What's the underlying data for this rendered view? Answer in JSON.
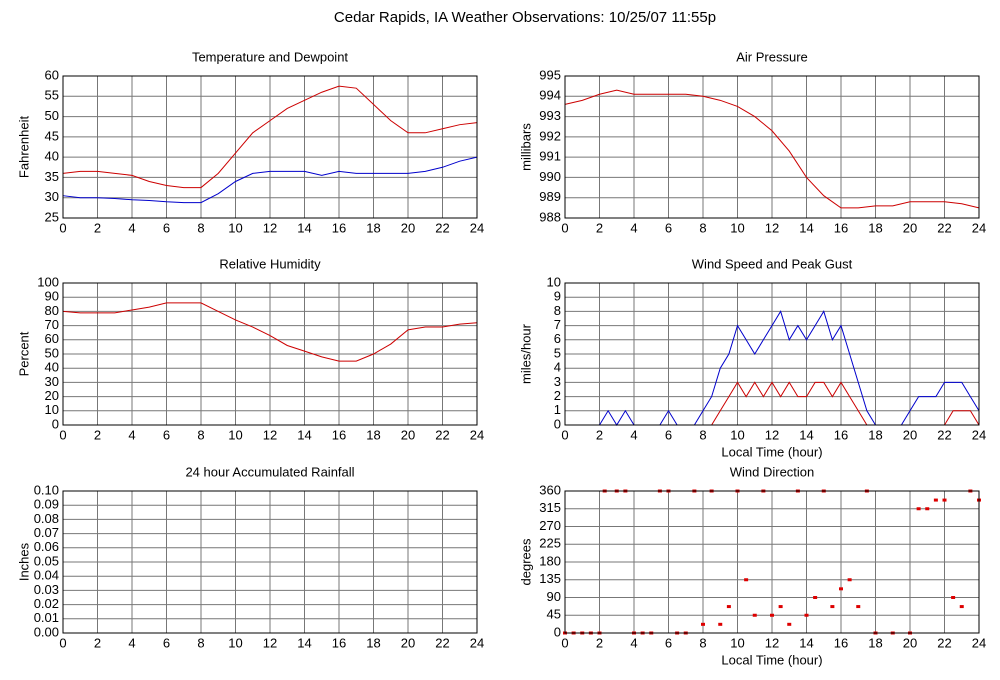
{
  "title": "Cedar Rapids, IA Weather Observations: 10/25/07 11:55p",
  "chart_data": [
    {
      "type": "line",
      "title": "Temperature and Dewpoint",
      "ylabel": "Fahrenheit",
      "x": [
        0,
        1,
        2,
        3,
        4,
        5,
        6,
        7,
        8,
        9,
        10,
        11,
        12,
        13,
        14,
        15,
        16,
        17,
        18,
        19,
        20,
        21,
        22,
        23,
        24
      ],
      "series": [
        {
          "name": "Temperature",
          "color": "#cc0000",
          "values": [
            36,
            36.5,
            36.5,
            36,
            35.5,
            34,
            33,
            32.5,
            32.5,
            36,
            41,
            46,
            49,
            52,
            54,
            56,
            57.5,
            57,
            53,
            49,
            46,
            46,
            47,
            48,
            48.5
          ]
        },
        {
          "name": "Dewpoint",
          "color": "#0000cc",
          "values": [
            30.5,
            30,
            30,
            29.8,
            29.5,
            29.3,
            29,
            28.8,
            28.8,
            31,
            34,
            36,
            36.5,
            36.5,
            36.5,
            35.5,
            36.5,
            36,
            36,
            36,
            36,
            36.5,
            37.5,
            39,
            40
          ]
        }
      ],
      "xlim": [
        0,
        24
      ],
      "xticks": [
        0,
        2,
        4,
        6,
        8,
        10,
        12,
        14,
        16,
        18,
        20,
        22,
        24
      ],
      "ylim": [
        25,
        60
      ],
      "yticks": [
        25,
        30,
        35,
        40,
        45,
        50,
        55,
        60
      ],
      "grid": true
    },
    {
      "type": "line",
      "title": "Air Pressure",
      "ylabel": "millibars",
      "x": [
        0,
        1,
        2,
        3,
        4,
        5,
        6,
        7,
        8,
        9,
        10,
        11,
        12,
        13,
        14,
        15,
        16,
        17,
        18,
        19,
        20,
        21,
        22,
        23,
        24
      ],
      "series": [
        {
          "name": "Pressure",
          "color": "#cc0000",
          "values": [
            993.6,
            993.8,
            994.1,
            994.3,
            994.1,
            994.1,
            994.1,
            994.1,
            994.0,
            993.8,
            993.5,
            993.0,
            992.3,
            991.3,
            990.0,
            989.1,
            988.5,
            988.5,
            988.6,
            988.6,
            988.8,
            988.8,
            988.8,
            988.7,
            988.5
          ]
        }
      ],
      "xlim": [
        0,
        24
      ],
      "xticks": [
        0,
        2,
        4,
        6,
        8,
        10,
        12,
        14,
        16,
        18,
        20,
        22,
        24
      ],
      "ylim": [
        988,
        995
      ],
      "yticks": [
        988,
        989,
        990,
        991,
        992,
        993,
        994,
        995
      ],
      "grid": true
    },
    {
      "type": "line",
      "title": "Relative Humidity",
      "ylabel": "Percent",
      "x": [
        0,
        1,
        2,
        3,
        4,
        5,
        6,
        7,
        8,
        9,
        10,
        11,
        12,
        13,
        14,
        15,
        16,
        17,
        18,
        19,
        20,
        21,
        22,
        23,
        24
      ],
      "series": [
        {
          "name": "Humidity",
          "color": "#cc0000",
          "values": [
            80,
            79,
            79,
            79,
            81,
            83,
            86,
            86,
            86,
            80,
            74,
            69,
            63,
            56,
            52,
            48,
            45,
            45,
            50,
            57,
            67,
            69,
            69,
            71,
            72
          ]
        }
      ],
      "xlim": [
        0,
        24
      ],
      "xticks": [
        0,
        2,
        4,
        6,
        8,
        10,
        12,
        14,
        16,
        18,
        20,
        22,
        24
      ],
      "ylim": [
        0,
        100
      ],
      "yticks": [
        0,
        10,
        20,
        30,
        40,
        50,
        60,
        70,
        80,
        90,
        100
      ],
      "grid": true
    },
    {
      "type": "line",
      "title": "Wind Speed and Peak Gust",
      "ylabel": "miles/hour",
      "xlabel": "Local Time (hour)",
      "x": [
        0,
        0.5,
        1,
        1.5,
        2,
        2.5,
        3,
        3.5,
        4,
        4.5,
        5,
        5.5,
        6,
        6.5,
        7,
        7.5,
        8,
        8.5,
        9,
        9.5,
        10,
        10.5,
        11,
        11.5,
        12,
        12.5,
        13,
        13.5,
        14,
        14.5,
        15,
        15.5,
        16,
        16.5,
        17,
        17.5,
        18,
        18.5,
        19,
        19.5,
        20,
        20.5,
        21,
        21.5,
        22,
        22.5,
        23,
        23.5,
        24
      ],
      "series": [
        {
          "name": "Wind Speed",
          "color": "#0000cc",
          "values": [
            0,
            0,
            0,
            0,
            0,
            1,
            0,
            1,
            0,
            0,
            0,
            0,
            1,
            0,
            0,
            0,
            1,
            2,
            4,
            5,
            7,
            6,
            5,
            6,
            7,
            8,
            6,
            7,
            6,
            7,
            8,
            6,
            7,
            5,
            3,
            1,
            0,
            0,
            0,
            0,
            1,
            2,
            2,
            2,
            3,
            3,
            3,
            2,
            1
          ]
        },
        {
          "name": "Peak Gust",
          "color": "#cc0000",
          "values": [
            0,
            0,
            0,
            0,
            0,
            0,
            0,
            0,
            0,
            0,
            0,
            0,
            0,
            0,
            0,
            0,
            0,
            0,
            1,
            2,
            3,
            2,
            3,
            2,
            3,
            2,
            3,
            2,
            2,
            3,
            3,
            2,
            3,
            2,
            1,
            0,
            0,
            0,
            0,
            0,
            0,
            0,
            0,
            0,
            0,
            1,
            1,
            1,
            0
          ]
        }
      ],
      "xlim": [
        0,
        24
      ],
      "xticks": [
        0,
        2,
        4,
        6,
        8,
        10,
        12,
        14,
        16,
        18,
        20,
        22,
        24
      ],
      "ylim": [
        0,
        10
      ],
      "yticks": [
        0,
        1,
        2,
        3,
        4,
        5,
        6,
        7,
        8,
        9,
        10
      ],
      "grid": true
    },
    {
      "type": "line",
      "title": "24 hour Accumulated Rainfall",
      "ylabel": "Inches",
      "x": [
        0,
        1,
        2,
        3,
        4,
        5,
        6,
        7,
        8,
        9,
        10,
        11,
        12,
        13,
        14,
        15,
        16,
        17,
        18,
        19,
        20,
        21,
        22,
        23,
        24
      ],
      "series": [
        {
          "name": "Rainfall",
          "color": "#cc0000",
          "values": [
            0,
            0,
            0,
            0,
            0,
            0,
            0,
            0,
            0,
            0,
            0,
            0,
            0,
            0,
            0,
            0,
            0,
            0,
            0,
            0,
            0,
            0,
            0,
            0,
            0
          ]
        }
      ],
      "xlim": [
        0,
        24
      ],
      "xticks": [
        0,
        2,
        4,
        6,
        8,
        10,
        12,
        14,
        16,
        18,
        20,
        22,
        24
      ],
      "ylim": [
        0,
        0.1
      ],
      "yticks": [
        {
          "value": 0,
          "label": "0.00"
        },
        {
          "value": 0.01,
          "label": "0.01"
        },
        {
          "value": 0.02,
          "label": "0.02"
        },
        {
          "value": 0.03,
          "label": "0.03"
        },
        {
          "value": 0.04,
          "label": "0.04"
        },
        {
          "value": 0.05,
          "label": "0.05"
        },
        {
          "value": 0.06,
          "label": "0.06"
        },
        {
          "value": 0.07,
          "label": "0.07"
        },
        {
          "value": 0.08,
          "label": "0.08"
        },
        {
          "value": 0.09,
          "label": "0.09"
        },
        {
          "value": 0.1,
          "label": "0.10"
        }
      ],
      "grid": true
    },
    {
      "type": "scatter",
      "title": "Wind Direction",
      "ylabel": "degrees",
      "xlabel": "Local Time (hour)",
      "color": "#dd0000",
      "x": [
        0,
        0.5,
        1,
        1.5,
        2,
        2.3,
        3,
        3.5,
        4,
        4.5,
        5,
        5.5,
        6,
        6.5,
        7,
        7.5,
        8,
        8.5,
        9,
        9.5,
        10,
        10.5,
        11,
        11.5,
        12,
        12.5,
        13,
        13.5,
        14,
        14.5,
        15,
        15.5,
        16,
        16.5,
        17,
        17.5,
        18,
        19,
        20,
        20.5,
        21,
        21.5,
        22,
        22.5,
        23,
        23.5,
        24
      ],
      "values": [
        0,
        0,
        0,
        0,
        0,
        360,
        360,
        360,
        0,
        0,
        0,
        360,
        360,
        0,
        0,
        360,
        22,
        360,
        22,
        67,
        360,
        135,
        45,
        360,
        45,
        67,
        22,
        360,
        45,
        90,
        360,
        67,
        112,
        135,
        67,
        360,
        0,
        0,
        0,
        315,
        315,
        337,
        337,
        90,
        67,
        360,
        337
      ],
      "xlim": [
        0,
        24
      ],
      "xticks": [
        0,
        2,
        4,
        6,
        8,
        10,
        12,
        14,
        16,
        18,
        20,
        22,
        24
      ],
      "ylim": [
        0,
        360
      ],
      "yticks": [
        0,
        45,
        90,
        135,
        180,
        225,
        270,
        315,
        360
      ],
      "grid": true
    }
  ]
}
